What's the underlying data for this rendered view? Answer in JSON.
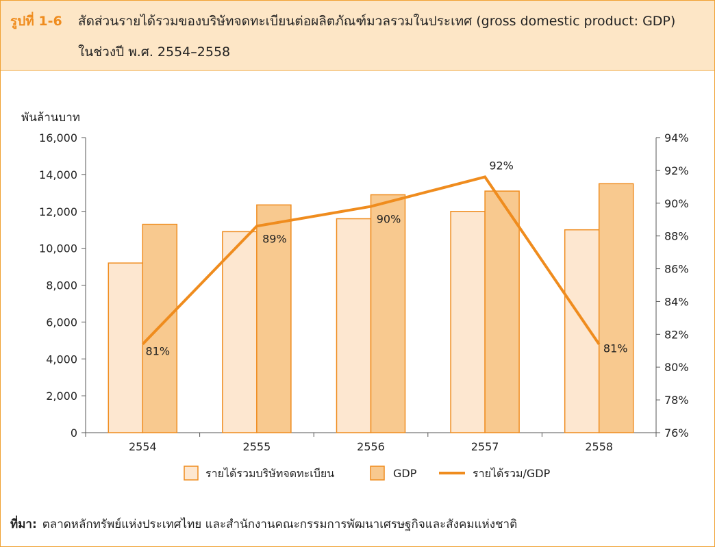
{
  "figure": {
    "label": "รูปที่ 1-6",
    "title_line1": "สัดส่วนรายได้รวมของบริษัทจดทะเบียนต่อผลิตภัณฑ์มวลรวมในประเทศ (gross domestic product: GDP)",
    "title_line2": "ในช่วงปี พ.ศ. 2554–2558"
  },
  "source": {
    "label": "ที่มา:",
    "text": "ตลาดหลักทรัพย์แห่งประเทศไทย และสำนักงานคณะกรรมการพัฒนาเศรษฐกิจและสังคมแห่งชาติ"
  },
  "colors": {
    "accent": "#ef8c1e",
    "revenue_fill": "#fde7d0",
    "gdp_fill": "#f8c98f",
    "bar_stroke": "#ef8c1e",
    "line": "#ef8c1e",
    "axis": "#555555"
  },
  "chart_data": {
    "type": "bar",
    "categories": [
      "2554",
      "2555",
      "2556",
      "2557",
      "2558"
    ],
    "ylabel": "พันล้านบาท",
    "ylim": [
      0,
      16000
    ],
    "yticks": [
      "0",
      "2,000",
      "4,000",
      "6,000",
      "8,000",
      "10,000",
      "12,000",
      "14,000",
      "16,000"
    ],
    "y2lim": [
      76,
      94
    ],
    "y2ticks": [
      "76%",
      "78%",
      "80%",
      "82%",
      "84%",
      "86%",
      "88%",
      "90%",
      "92%",
      "94%"
    ],
    "grid": "horizontal",
    "legend_position": "bottom",
    "series": [
      {
        "name": "รายได้รวมบริษัทจดทะเบียน",
        "type": "bar",
        "axis": "left",
        "values": [
          9200,
          10900,
          11600,
          12000,
          11000
        ]
      },
      {
        "name": "GDP",
        "type": "bar",
        "axis": "left",
        "values": [
          11300,
          12350,
          12900,
          13100,
          13500
        ]
      },
      {
        "name": "รายได้รวม/GDP",
        "type": "line",
        "axis": "right",
        "values": [
          81.4,
          88.6,
          89.8,
          91.6,
          81.4
        ],
        "labels": [
          "81%",
          "89%",
          "90%",
          "92%",
          "81%"
        ]
      }
    ]
  }
}
